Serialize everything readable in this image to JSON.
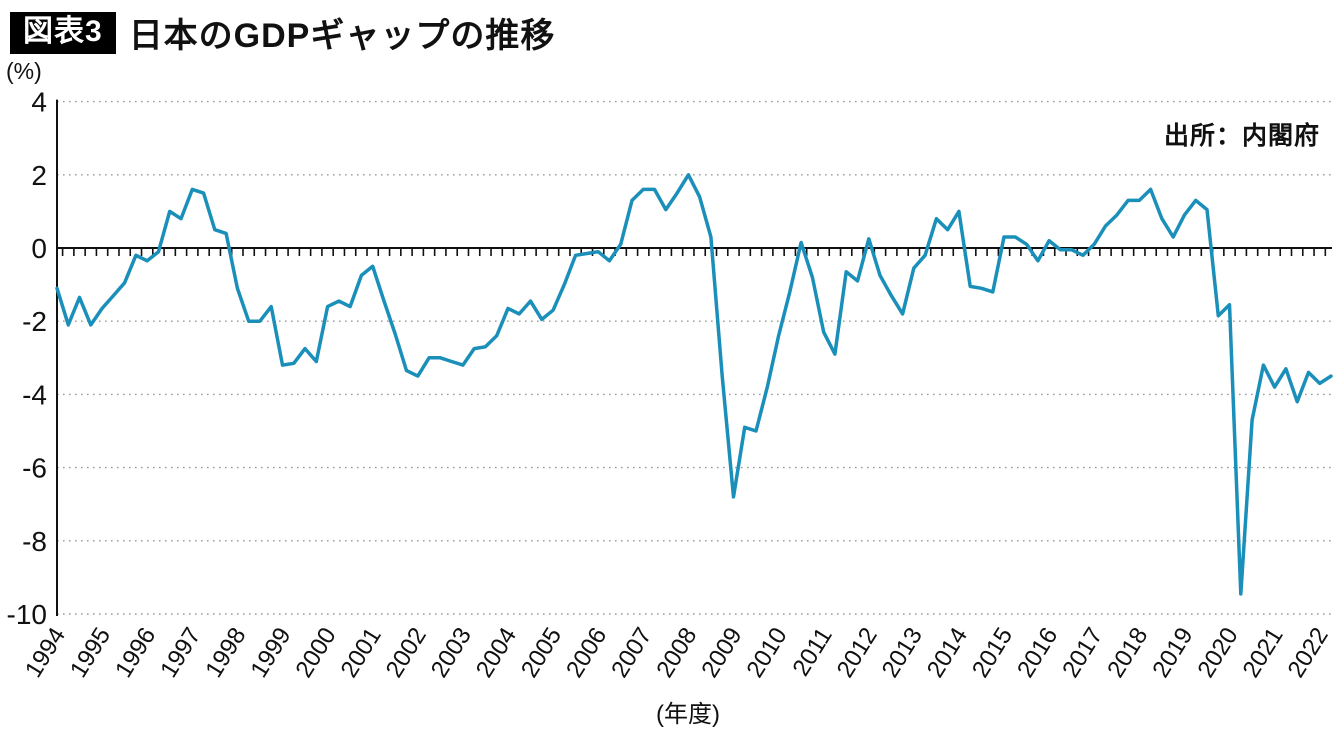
{
  "title": {
    "badge": "図表3",
    "text": "日本のGDPギャップの推移"
  },
  "source_note": "出所：内閣府",
  "chart_data": {
    "type": "line",
    "title": "日本のGDPギャップの推移",
    "unit_label": "(%)",
    "xlabel": "(年度)",
    "ylabel": "(%)",
    "ylim": [
      -10,
      4
    ],
    "y_ticks": [
      4,
      2,
      0,
      -2,
      -4,
      -6,
      -8,
      -10
    ],
    "grid": "horizontal dotted lines, solid black zero line with quarterly tick marks",
    "legend": "none",
    "line_color": "#1a8fb9",
    "x_tick_labels": [
      "1994",
      "1995",
      "1996",
      "1997",
      "1998",
      "1999",
      "2000",
      "2001",
      "2002",
      "2003",
      "2004",
      "2005",
      "2006",
      "2007",
      "2008",
      "2009",
      "2010",
      "2011",
      "2012",
      "2013",
      "2014",
      "2015",
      "2016",
      "2017",
      "2018",
      "2019",
      "2020",
      "2021",
      "2022"
    ],
    "series": [
      {
        "name": "GDPギャップ",
        "frequency": "quarterly",
        "period": "1994Q1-2022Q2",
        "values": [
          -1.1,
          -2.1,
          -1.35,
          -2.1,
          -1.65,
          -1.3,
          -0.95,
          -0.2,
          -0.35,
          -0.1,
          1.0,
          0.8,
          1.6,
          1.5,
          0.5,
          0.4,
          -1.1,
          -2.0,
          -2.0,
          -1.6,
          -3.2,
          -3.15,
          -2.75,
          -3.1,
          -1.6,
          -1.45,
          -1.6,
          -0.75,
          -0.5,
          -1.45,
          -2.35,
          -3.35,
          -3.5,
          -3.0,
          -3.0,
          -3.1,
          -3.2,
          -2.75,
          -2.7,
          -2.4,
          -1.65,
          -1.8,
          -1.45,
          -1.95,
          -1.7,
          -1.0,
          -0.2,
          -0.15,
          -0.1,
          -0.35,
          0.1,
          1.3,
          1.6,
          1.6,
          1.05,
          1.5,
          2.0,
          1.4,
          0.3,
          -3.5,
          -6.8,
          -4.9,
          -5.0,
          -3.8,
          -2.4,
          -1.2,
          0.15,
          -0.8,
          -2.3,
          -2.9,
          -0.65,
          -0.9,
          0.25,
          -0.75,
          -1.3,
          -1.8,
          -0.55,
          -0.2,
          0.8,
          0.5,
          1.0,
          -1.05,
          -1.1,
          -1.2,
          0.3,
          0.3,
          0.1,
          -0.35,
          0.2,
          -0.05,
          -0.05,
          -0.2,
          0.1,
          0.6,
          0.9,
          1.3,
          1.3,
          1.6,
          0.8,
          0.3,
          0.9,
          1.3,
          1.05,
          -1.85,
          -1.55,
          -9.45,
          -4.7,
          -3.2,
          -3.8,
          -3.3,
          -4.2,
          -3.4,
          -3.7,
          -3.5
        ]
      }
    ]
  }
}
